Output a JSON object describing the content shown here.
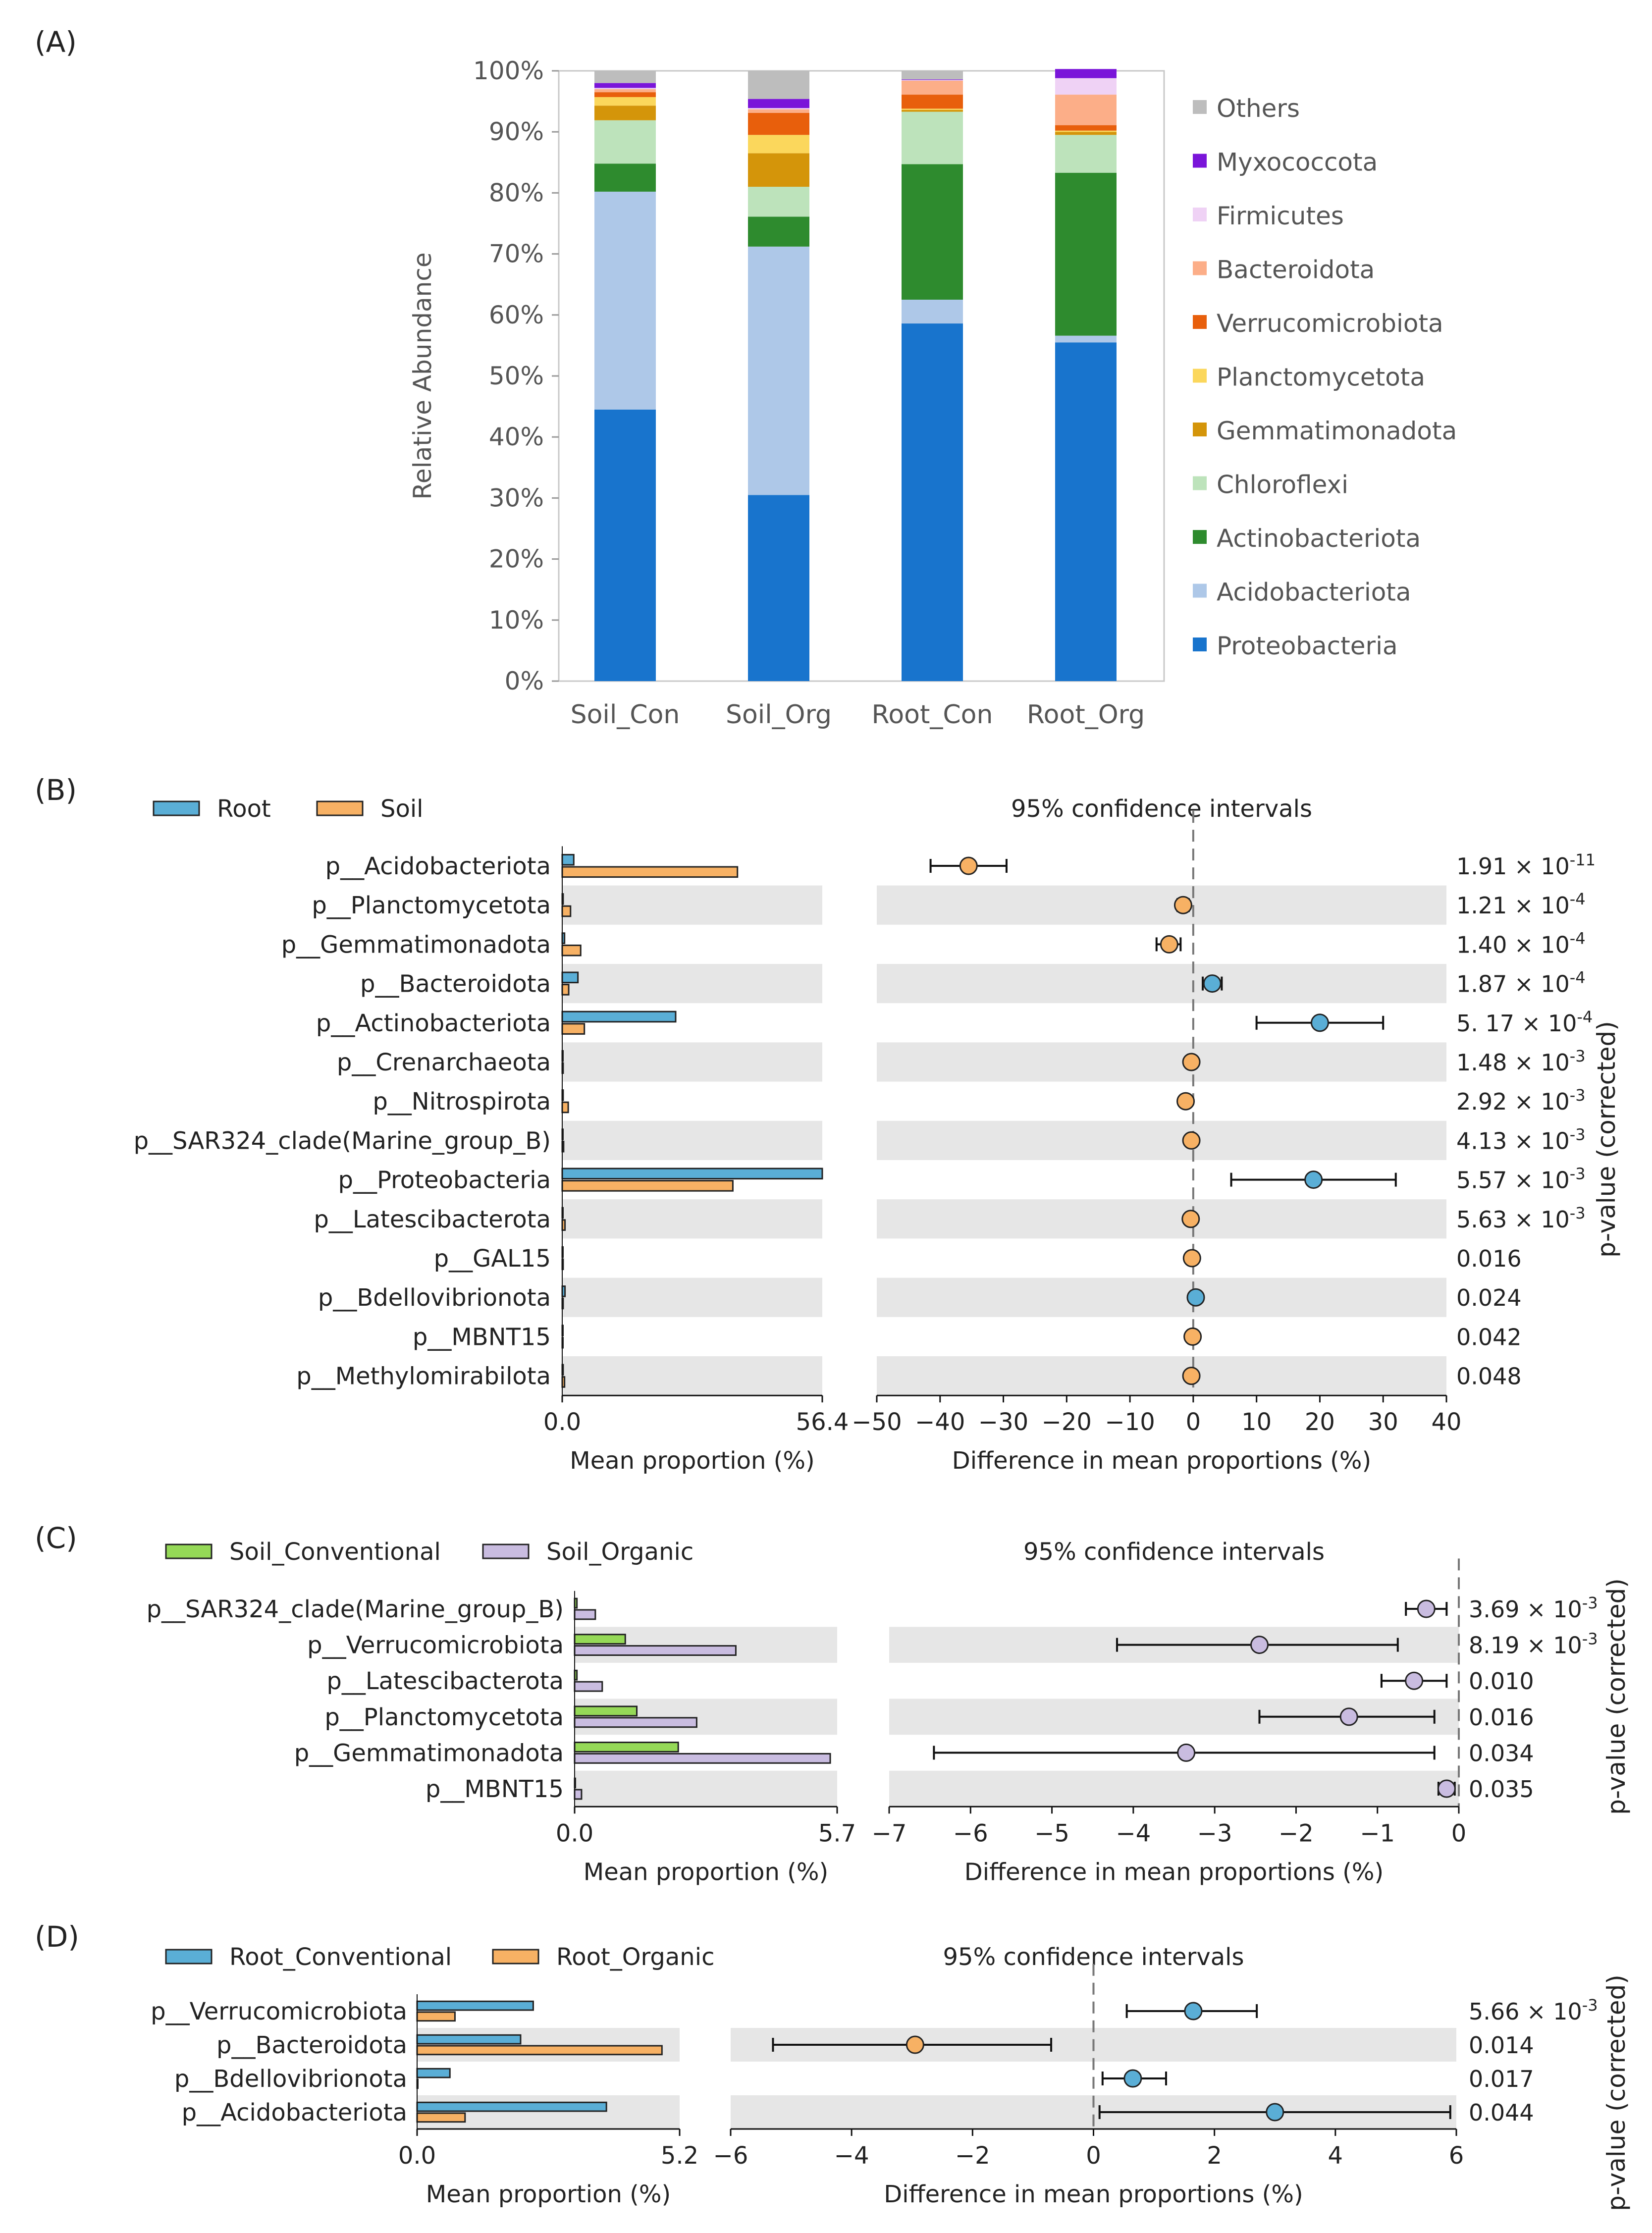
{
  "colors": {
    "proteobacteria": "#1874cd",
    "acidobacteriota": "#aec8e8",
    "actinobacteriota": "#2e8b2e",
    "chloroflexi": "#bde3bb",
    "gemmatimonadota": "#d4950a",
    "planctomycetota": "#fbd75c",
    "verrucomicrobiota": "#e85f0c",
    "bacteroidota": "#fcae88",
    "firmicutes": "#efd2f5",
    "myxococcota": "#7a15d9",
    "others": "#bdbdbd",
    "root_blue": "#5aaed6",
    "soil_orange": "#f7b164",
    "conv_green": "#95d957",
    "organic_purple": "#c9bce0",
    "shade": "#e6e6e6"
  },
  "panels": {
    "a": {
      "label": "(A)"
    },
    "b": {
      "label": "(B)"
    },
    "c": {
      "label": "(C)"
    },
    "d": {
      "label": "(D)"
    }
  },
  "chart_data": [
    {
      "id": "A",
      "type": "bar",
      "stacked": true,
      "ylabel": "Relative Abundance",
      "ylim": [
        0,
        100
      ],
      "yticks": [
        "0%",
        "10%",
        "20%",
        "30%",
        "40%",
        "50%",
        "60%",
        "70%",
        "80%",
        "90%",
        "100%"
      ],
      "categories": [
        "Soil_Con",
        "Soil_Org",
        "Root_Con",
        "Root_Org"
      ],
      "series": [
        {
          "name": "Proteobacteria",
          "color_key": "proteobacteria",
          "values": [
            44.5,
            30.5,
            58.6,
            55.5
          ]
        },
        {
          "name": "Acidobacteriota",
          "color_key": "acidobacteriota",
          "values": [
            35.7,
            40.7,
            3.9,
            1.1
          ]
        },
        {
          "name": "Actinobacteriota",
          "color_key": "actinobacteriota",
          "values": [
            4.6,
            4.9,
            22.2,
            26.7
          ]
        },
        {
          "name": "Chloroflexi",
          "color_key": "chloroflexi",
          "values": [
            7.1,
            4.9,
            8.6,
            6.2
          ]
        },
        {
          "name": "Gemmatimonadota",
          "color_key": "gemmatimonadota",
          "values": [
            2.4,
            5.5,
            0.3,
            0.5
          ]
        },
        {
          "name": "Planctomycetota",
          "color_key": "planctomycetota",
          "values": [
            1.4,
            3.0,
            0.2,
            0.2
          ]
        },
        {
          "name": "Verrucomicrobiota",
          "color_key": "verrucomicrobiota",
          "values": [
            0.8,
            3.6,
            2.3,
            0.9
          ]
        },
        {
          "name": "Bacteroidota",
          "color_key": "bacteroidota",
          "values": [
            0.5,
            0.6,
            2.3,
            5.0
          ]
        },
        {
          "name": "Firmicutes",
          "color_key": "firmicutes",
          "values": [
            0.2,
            0.2,
            0.1,
            2.7
          ]
        },
        {
          "name": "Myxococcota",
          "color_key": "myxococcota",
          "values": [
            0.8,
            1.5,
            0.1,
            1.5
          ]
        },
        {
          "name": "Others",
          "color_key": "others",
          "values": [
            2.0,
            4.6,
            1.4,
            0.0
          ]
        }
      ]
    },
    {
      "id": "B",
      "type": "bar",
      "subtype": "extended_error_bar",
      "legend": [
        {
          "name": "Root",
          "color_key": "root_blue"
        },
        {
          "name": "Soil",
          "color_key": "soil_orange"
        }
      ],
      "ci_title": "95% confidence intervals",
      "left_xlabel": "Mean proportion (%)",
      "left_xlim": [
        0,
        56.4
      ],
      "left_ticks": [
        "0.0",
        "56.4"
      ],
      "right_xlabel": "Difference in mean proportions (%)",
      "right_xlim": [
        -50,
        40
      ],
      "right_ticks": [
        "−50",
        "−40",
        "−30",
        "−20",
        "−10",
        "0",
        "10",
        "20",
        "30",
        "40"
      ],
      "right_tick_values": [
        -50,
        -40,
        -30,
        -20,
        -10,
        0,
        10,
        20,
        30,
        40
      ],
      "pvalue_label": "p-value (corrected)",
      "rows": [
        {
          "name": "p__Acidobacteriota",
          "a": 2.5,
          "b": 38.0,
          "diff": -35.5,
          "lo": -41.5,
          "hi": -29.5,
          "p_base": "1.91 × 10",
          "p_exp": "-11"
        },
        {
          "name": "p__Planctomycetota",
          "a": 0.2,
          "b": 1.8,
          "diff": -1.6,
          "lo": -2.5,
          "hi": -0.7,
          "p_base": "1.21 × 10",
          "p_exp": "-4"
        },
        {
          "name": "p__Gemmatimonadota",
          "a": 0.5,
          "b": 4.0,
          "diff": -3.8,
          "lo": -5.8,
          "hi": -2.0,
          "p_base": "1.40 × 10",
          "p_exp": "-4"
        },
        {
          "name": "p__Bacteroidota",
          "a": 3.4,
          "b": 1.4,
          "diff": 3.0,
          "lo": 1.5,
          "hi": 4.5,
          "p_base": "1.87 × 10",
          "p_exp": "-4"
        },
        {
          "name": "p__Actinobacteriota",
          "a": 24.6,
          "b": 4.8,
          "diff": 20.0,
          "lo": 10.0,
          "hi": 30.0,
          "p_base": "5. 17 × 10",
          "p_exp": "-4"
        },
        {
          "name": "p__Crenarchaeota",
          "a": 0.1,
          "b": 0.2,
          "diff": -0.3,
          "lo": -0.6,
          "hi": 0.0,
          "p_base": "1.48 × 10",
          "p_exp": "-3"
        },
        {
          "name": "p__Nitrospirota",
          "a": 0.2,
          "b": 1.3,
          "diff": -1.2,
          "lo": -1.8,
          "hi": -0.6,
          "p_base": "2.92 × 10",
          "p_exp": "-3"
        },
        {
          "name": "p__SAR324_clade(Marine_group_B)",
          "a": 0.1,
          "b": 0.3,
          "diff": -0.3,
          "lo": -0.5,
          "hi": -0.1,
          "p_base": "4.13 × 10",
          "p_exp": "-3"
        },
        {
          "name": "p__Proteobacteria",
          "a": 56.4,
          "b": 37.0,
          "diff": 19.0,
          "lo": 6.0,
          "hi": 32.0,
          "p_base": "5.57 × 10",
          "p_exp": "-3"
        },
        {
          "name": "p__Latescibacterota",
          "a": 0.1,
          "b": 0.6,
          "diff": -0.4,
          "lo": -0.7,
          "hi": -0.1,
          "p_base": "5.63 × 10",
          "p_exp": "-3"
        },
        {
          "name": "p__GAL15",
          "a": 0.0,
          "b": 0.2,
          "diff": -0.2,
          "lo": -0.4,
          "hi": 0.0,
          "p_base": "0.016",
          "p_exp": ""
        },
        {
          "name": "p__Bdellovibrionota",
          "a": 0.6,
          "b": 0.2,
          "diff": 0.4,
          "lo": 0.1,
          "hi": 0.7,
          "p_base": "0.024",
          "p_exp": ""
        },
        {
          "name": "p__MBNT15",
          "a": 0.0,
          "b": 0.1,
          "diff": -0.1,
          "lo": -0.2,
          "hi": 0.0,
          "p_base": "0.042",
          "p_exp": ""
        },
        {
          "name": "p__Methylomirabilota",
          "a": 0.2,
          "b": 0.5,
          "diff": -0.3,
          "lo": -0.5,
          "hi": -0.1,
          "p_base": "0.048",
          "p_exp": ""
        }
      ],
      "dot_positive_color": "root_blue",
      "dot_negative_color": "soil_orange"
    },
    {
      "id": "C",
      "type": "bar",
      "subtype": "extended_error_bar",
      "legend": [
        {
          "name": "Soil_Conventional",
          "color_key": "conv_green"
        },
        {
          "name": "Soil_Organic",
          "color_key": "organic_purple"
        }
      ],
      "ci_title": "95% confidence intervals",
      "left_xlabel": "Mean proportion (%)",
      "left_xlim": [
        0,
        5.7
      ],
      "left_ticks": [
        "0.0",
        "5.7"
      ],
      "right_xlabel": "Difference in mean proportions (%)",
      "right_xlim": [
        -7,
        0
      ],
      "right_ticks": [
        "−7",
        "−6",
        "−5",
        "−4",
        "−3",
        "−2",
        "−1",
        "0"
      ],
      "right_tick_values": [
        -7,
        -6,
        -5,
        -4,
        -3,
        -2,
        -1,
        0
      ],
      "pvalue_label": "p-value (corrected)",
      "rows": [
        {
          "name": "p__SAR324_clade(Marine_group_B)",
          "a": 0.05,
          "b": 0.45,
          "diff": -0.4,
          "lo": -0.65,
          "hi": -0.15,
          "p_base": "3.69 × 10",
          "p_exp": "-3"
        },
        {
          "name": "p__Verrucomicrobiota",
          "a": 1.1,
          "b": 3.5,
          "diff": -2.45,
          "lo": -4.2,
          "hi": -0.75,
          "p_base": "8.19 × 10",
          "p_exp": "-3"
        },
        {
          "name": "p__Latescibacterota",
          "a": 0.05,
          "b": 0.6,
          "diff": -0.55,
          "lo": -0.95,
          "hi": -0.15,
          "p_base": "0.010",
          "p_exp": ""
        },
        {
          "name": "p__Planctomycetota",
          "a": 1.35,
          "b": 2.65,
          "diff": -1.35,
          "lo": -2.45,
          "hi": -0.3,
          "p_base": "0.016",
          "p_exp": ""
        },
        {
          "name": "p__Gemmatimonadota",
          "a": 2.25,
          "b": 5.55,
          "diff": -3.35,
          "lo": -6.45,
          "hi": -0.3,
          "p_base": "0.034",
          "p_exp": ""
        },
        {
          "name": "p__MBNT15",
          "a": 0.0,
          "b": 0.15,
          "diff": -0.15,
          "lo": -0.25,
          "hi": -0.05,
          "p_base": "0.035",
          "p_exp": ""
        }
      ],
      "dot_positive_color": "conv_green",
      "dot_negative_color": "organic_purple"
    },
    {
      "id": "D",
      "type": "bar",
      "subtype": "extended_error_bar",
      "legend": [
        {
          "name": "Root_Conventional",
          "color_key": "root_blue"
        },
        {
          "name": "Root_Organic",
          "color_key": "soil_orange"
        }
      ],
      "ci_title": "95% confidence intervals",
      "left_xlabel": "Mean proportion (%)",
      "left_xlim": [
        0,
        5.2
      ],
      "left_ticks": [
        "0.0",
        "5.2"
      ],
      "right_xlabel": "Difference in mean proportions (%)",
      "right_xlim": [
        -6,
        6
      ],
      "right_ticks": [
        "−6",
        "−4",
        "−2",
        "0",
        "2",
        "4",
        "6"
      ],
      "right_tick_values": [
        -6,
        -4,
        -2,
        0,
        2,
        4,
        6
      ],
      "pvalue_label": "p-value (corrected)",
      "rows": [
        {
          "name": "p__Verrucomicrobiota",
          "a": 2.3,
          "b": 0.75,
          "diff": 1.65,
          "lo": 0.55,
          "hi": 2.7,
          "p_base": "5.66 × 10",
          "p_exp": "-3"
        },
        {
          "name": "p__Bacteroidota",
          "a": 2.05,
          "b": 4.85,
          "diff": -2.95,
          "lo": -5.3,
          "hi": -0.7,
          "p_base": "0.014",
          "p_exp": ""
        },
        {
          "name": "p__Bdellovibrionota",
          "a": 0.65,
          "b": 0.0,
          "diff": 0.65,
          "lo": 0.15,
          "hi": 1.2,
          "p_base": "0.017",
          "p_exp": ""
        },
        {
          "name": "p__Acidobacteriota",
          "a": 3.75,
          "b": 0.95,
          "diff": 3.0,
          "lo": 0.1,
          "hi": 5.9,
          "p_base": "0.044",
          "p_exp": ""
        }
      ],
      "dot_positive_color": "root_blue",
      "dot_negative_color": "soil_orange"
    }
  ]
}
